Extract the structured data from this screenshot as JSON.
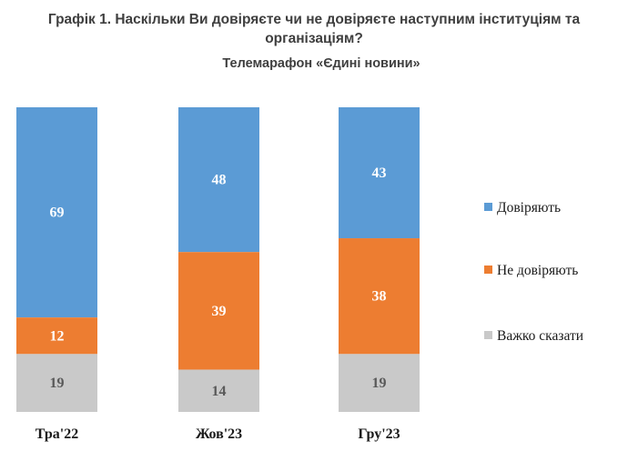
{
  "chart_data": {
    "type": "bar",
    "stacked": true,
    "title": "Графік 1. Наскільки Ви довіряєте чи не довіряєте наступним інституціям та організаціям?",
    "subtitle": "Телемарафон «Єдині новини»",
    "categories": [
      "Тра'22",
      "Жов'23",
      "Гру'23"
    ],
    "series": [
      {
        "name": "Довіряють",
        "values": [
          69,
          48,
          43
        ],
        "color": "#5b9bd5",
        "label_color": "#ffffff"
      },
      {
        "name": "Не довіряють",
        "values": [
          12,
          39,
          38
        ],
        "color": "#ed7d31",
        "label_color": "#ffffff"
      },
      {
        "name": "Важко сказати",
        "values": [
          19,
          14,
          19
        ],
        "color": "#c9c9c9",
        "label_color": "#595959"
      }
    ],
    "ylim": [
      0,
      100
    ],
    "grid": false,
    "legend_position": "right"
  }
}
